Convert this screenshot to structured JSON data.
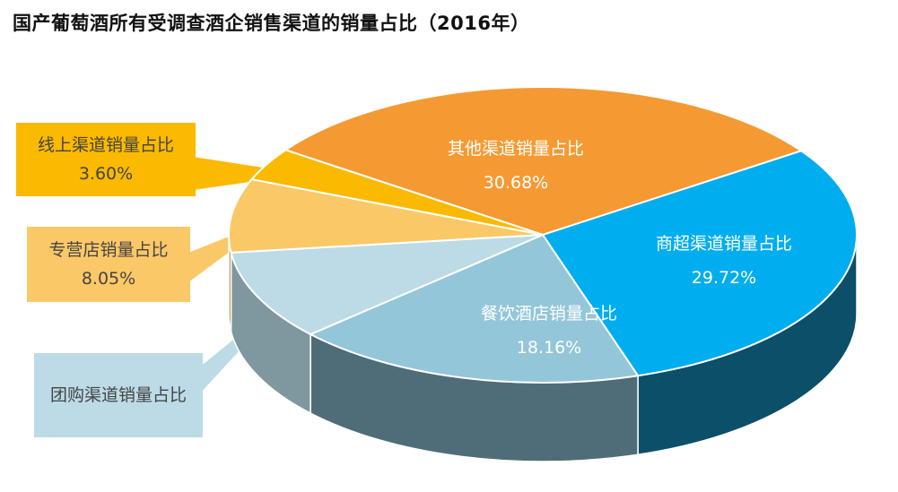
{
  "chart_data": {
    "type": "pie",
    "title": "国产葡萄酒所有受调查酒企销售渠道的销量占比（2016年）",
    "slices": [
      {
        "name": "其他渠道销量占比",
        "value": 30.68,
        "label": "30.68%",
        "color": "#f59a33",
        "side_color": "#b8641a"
      },
      {
        "name": "商超渠道销量占比",
        "value": 29.72,
        "label": "29.72%",
        "color": "#00adee",
        "side_color": "#0b4f68"
      },
      {
        "name": "餐饮酒店销量占比",
        "value": 18.16,
        "label": "18.16%",
        "color": "#93c6d8",
        "side_color": "#4f6d78"
      },
      {
        "name": "团购渠道销量占比",
        "value": 9.83,
        "label": "",
        "color": "#bcdbe6",
        "side_color": "#7f98a0"
      },
      {
        "name": "专营店销量占比",
        "value": 8.05,
        "label": "8.05%",
        "color": "#fbc867",
        "side_color": "#b58a3c"
      },
      {
        "name": "线上渠道销量占比",
        "value": 3.6,
        "label": "3.60%",
        "color": "#fbb900",
        "side_color": "#a47a00"
      }
    ]
  },
  "callouts": [
    {
      "name": "线上渠道销量占比",
      "value_text": "3.60%",
      "color": "#fbb900"
    },
    {
      "name": "专营店销量占比",
      "value_text": "8.05%",
      "color": "#fbc867"
    },
    {
      "name": "团购渠道销量占比",
      "value_text": "",
      "color": "#bcdbe6"
    }
  ]
}
